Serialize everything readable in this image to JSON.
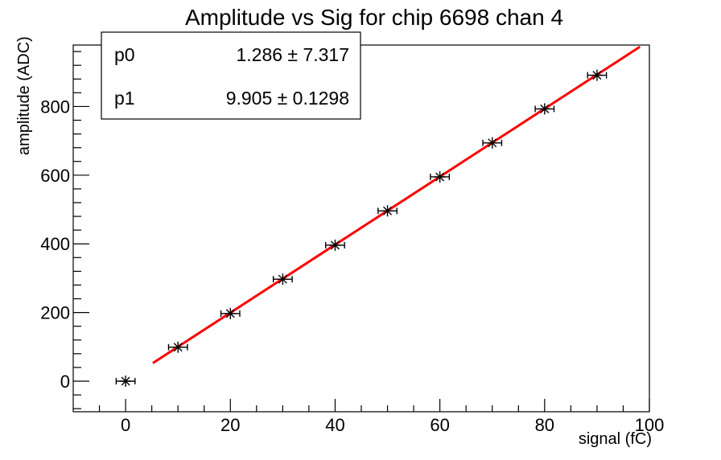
{
  "chart_data": {
    "type": "scatter",
    "title": "Amplitude vs Sig for chip 6698 chan 4",
    "xlabel": "signal (fC)",
    "ylabel": "amplitude (ADC)",
    "xlim": [
      -10,
      100
    ],
    "ylim": [
      -89,
      979
    ],
    "x_major_ticks": [
      0,
      20,
      40,
      60,
      80,
      100
    ],
    "y_major_ticks": [
      0,
      200,
      400,
      600,
      800
    ],
    "x_minor_step": 5,
    "y_minor_step": 40,
    "grid": false,
    "legend": null,
    "points": [
      {
        "x": 0,
        "y": 0,
        "xerr": 1.8
      },
      {
        "x": 10,
        "y": 99,
        "xerr": 1.8
      },
      {
        "x": 20,
        "y": 197,
        "xerr": 1.8
      },
      {
        "x": 30,
        "y": 297,
        "xerr": 1.8
      },
      {
        "x": 40,
        "y": 396,
        "xerr": 1.8
      },
      {
        "x": 50,
        "y": 496,
        "xerr": 1.8
      },
      {
        "x": 60,
        "y": 595,
        "xerr": 1.8
      },
      {
        "x": 70,
        "y": 694,
        "xerr": 1.8
      },
      {
        "x": 80,
        "y": 793,
        "xerr": 1.8
      },
      {
        "x": 90,
        "y": 891,
        "xerr": 1.8
      }
    ],
    "fit": {
      "p0": 1.286,
      "p1": 9.905,
      "draw_range": [
        5.2,
        98.2
      ],
      "color": "#ff0000",
      "line_width": 3
    },
    "marker": {
      "style": "asterisk",
      "color": "#000000"
    }
  },
  "stats_box": {
    "rows": [
      {
        "name": "p0",
        "value": "1.286 ± 7.317"
      },
      {
        "name": "p1",
        "value": "9.905 ± 0.1298"
      }
    ]
  },
  "colors": {
    "fit_line": "#ff0000",
    "axis": "#000000",
    "background": "#ffffff"
  }
}
